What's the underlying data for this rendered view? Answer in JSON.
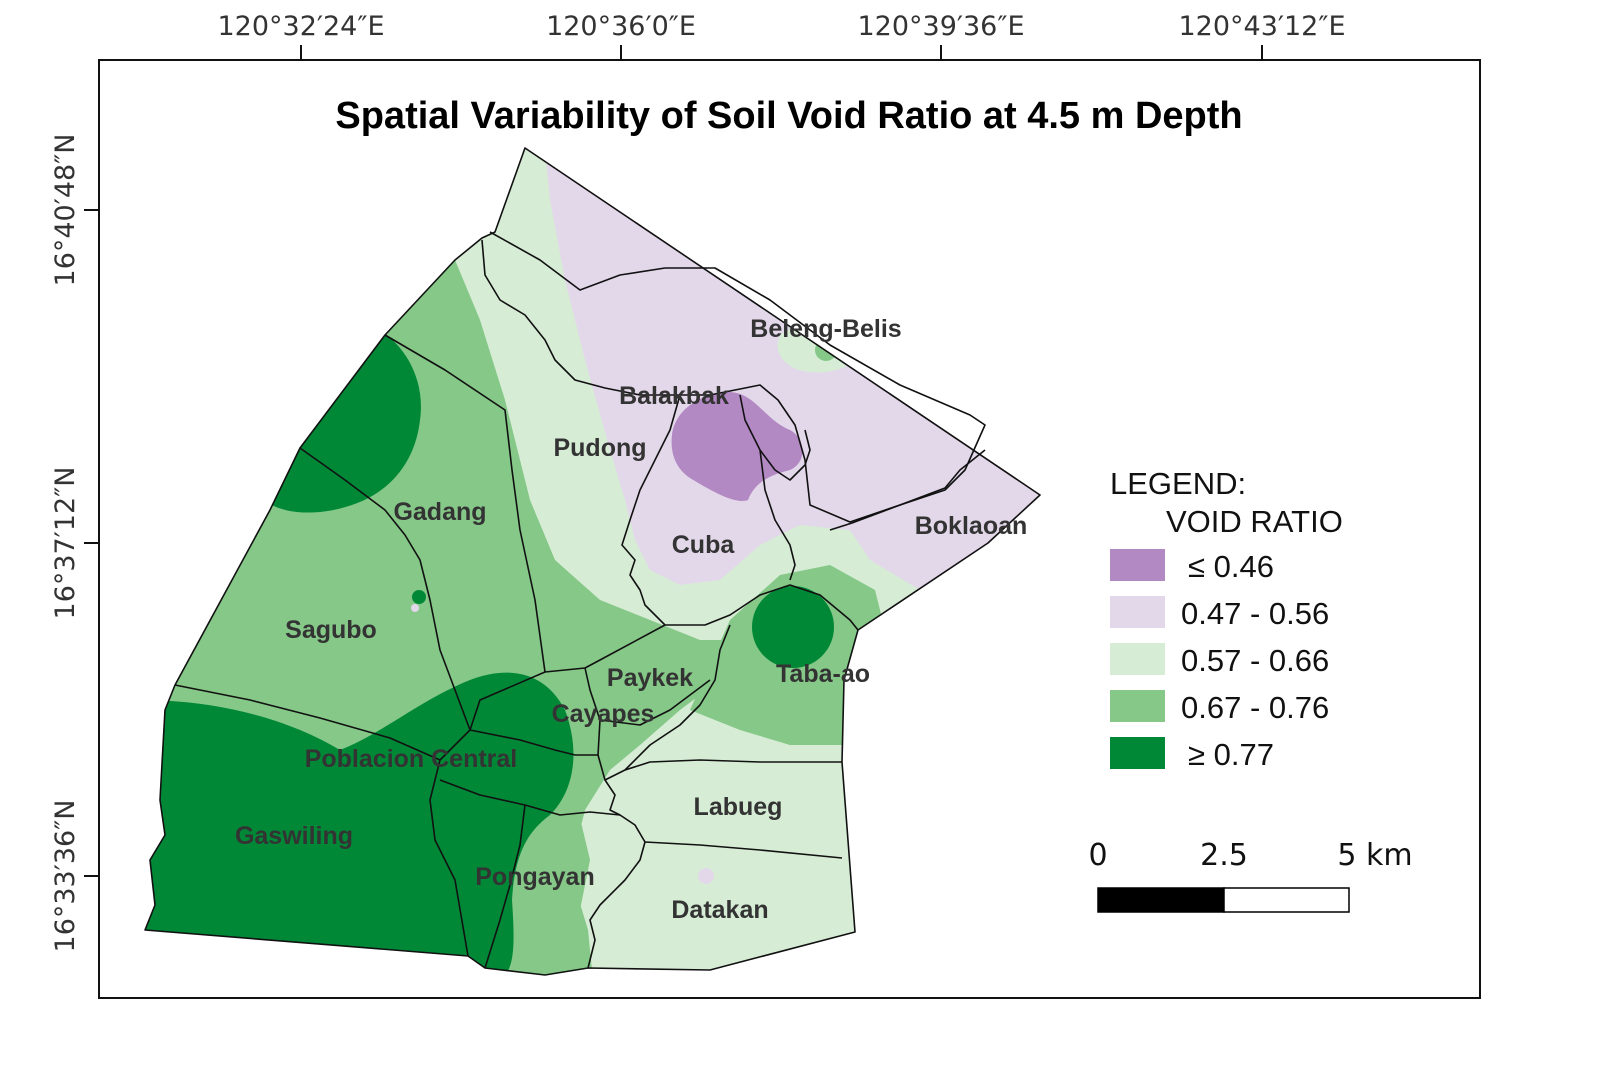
{
  "title": "Spatial Variability of Soil Void Ratio at 4.5 m Depth",
  "axes": {
    "top_ticks": [
      "120°32′24″E",
      "120°36′0″E",
      "120°39′36″E",
      "120°43′12″E"
    ],
    "left_ticks": [
      "16°40′48″N",
      "16°37′12″N",
      "16°33′36″N"
    ]
  },
  "colors": {
    "class_1": "#b389c4",
    "class_2": "#e3d8ea",
    "class_3": "#d6ecd5",
    "class_4": "#85c888",
    "class_5": "#008837"
  },
  "regions": [
    "Beleng-Belis",
    "Balakbak",
    "Pudong",
    "Gadang",
    "Cuba",
    "Boklaoan",
    "Sagubo",
    "Taba-ao",
    "Paykek",
    "Cayapes",
    "Poblacion Central",
    "Labueg",
    "Gaswiling",
    "Pongayan",
    "Datakan"
  ],
  "legend": {
    "heading": "LEGEND:",
    "subheading": "VOID RATIO",
    "items": [
      {
        "label": "≤ 0.46",
        "color": "#b389c4"
      },
      {
        "label": "0.47 - 0.56",
        "color": "#e3d8ea"
      },
      {
        "label": "0.57 - 0.66",
        "color": "#d6ecd5"
      },
      {
        "label": "0.67 - 0.76",
        "color": "#85c888"
      },
      {
        "label": "≥ 0.77",
        "color": "#008837"
      }
    ]
  },
  "scale_bar": {
    "labels": [
      "0",
      "2.5",
      "5 km"
    ]
  }
}
